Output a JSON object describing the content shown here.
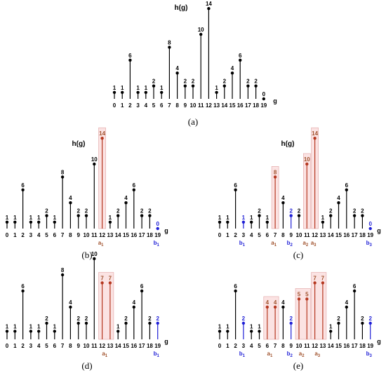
{
  "chart_data": [
    {
      "type": "bar",
      "subtype": "stem",
      "caption": "(a)",
      "ylabel": "h(g)",
      "xlabel": "g",
      "categories": [
        "0",
        "1",
        "2",
        "3",
        "4",
        "5",
        "6",
        "7",
        "8",
        "9",
        "10",
        "11",
        "12",
        "13",
        "14",
        "15",
        "16",
        "17",
        "18",
        "19"
      ],
      "values": [
        1,
        1,
        6,
        1,
        1,
        2,
        1,
        8,
        4,
        2,
        2,
        10,
        14,
        1,
        2,
        4,
        6,
        2,
        2,
        0
      ],
      "highlights": []
    },
    {
      "type": "bar",
      "subtype": "stem",
      "caption": "(b)",
      "ylabel": "h(g)",
      "xlabel": "g",
      "categories": [
        "0",
        "1",
        "2",
        "3",
        "4",
        "5",
        "6",
        "7",
        "8",
        "9",
        "10",
        "11",
        "12",
        "13",
        "14",
        "15",
        "16",
        "17",
        "18",
        "19"
      ],
      "values": [
        1,
        1,
        6,
        1,
        1,
        2,
        1,
        8,
        4,
        2,
        2,
        10,
        14,
        1,
        2,
        4,
        6,
        2,
        2,
        0
      ],
      "highlights": [
        {
          "index": 12,
          "kind": "a",
          "label": "a",
          "sub": "1"
        },
        {
          "index": 19,
          "kind": "b",
          "label": "b",
          "sub": "1"
        }
      ]
    },
    {
      "type": "bar",
      "subtype": "stem",
      "caption": "(c)",
      "ylabel": "h(g)",
      "xlabel": "g",
      "categories": [
        "0",
        "1",
        "2",
        "3",
        "4",
        "5",
        "6",
        "7",
        "8",
        "9",
        "10",
        "11",
        "12",
        "13",
        "14",
        "15",
        "16",
        "17",
        "18",
        "19"
      ],
      "values": [
        1,
        1,
        6,
        1,
        1,
        2,
        1,
        8,
        4,
        2,
        2,
        10,
        14,
        1,
        2,
        4,
        6,
        2,
        2,
        0
      ],
      "highlights": [
        {
          "index": 3,
          "kind": "b",
          "label": "b",
          "sub": "1"
        },
        {
          "index": 7,
          "kind": "a",
          "label": "a",
          "sub": "1"
        },
        {
          "index": 9,
          "kind": "b",
          "label": "b",
          "sub": "2"
        },
        {
          "index": 11,
          "kind": "a",
          "label": "a",
          "sub": "2"
        },
        {
          "index": 12,
          "kind": "a",
          "label": "a",
          "sub": "3"
        },
        {
          "index": 19,
          "kind": "b",
          "label": "b",
          "sub": "3"
        }
      ]
    },
    {
      "type": "bar",
      "subtype": "stem",
      "caption": "(d)",
      "ylabel": "",
      "xlabel": "g",
      "categories": [
        "0",
        "1",
        "2",
        "3",
        "4",
        "5",
        "6",
        "7",
        "8",
        "9",
        "10",
        "11",
        "12",
        "13",
        "14",
        "15",
        "16",
        "17",
        "18",
        "19"
      ],
      "values": [
        1,
        1,
        6,
        1,
        1,
        2,
        1,
        8,
        4,
        2,
        2,
        10,
        7,
        7,
        1,
        2,
        4,
        6,
        2,
        2
      ],
      "highlights": [
        {
          "index": 12,
          "kind": "a",
          "label": "a",
          "sub": "1",
          "group_end": 13
        },
        {
          "index": 19,
          "kind": "b",
          "label": "b",
          "sub": "1"
        }
      ]
    },
    {
      "type": "bar",
      "subtype": "stem",
      "caption": "(e)",
      "ylabel": "",
      "xlabel": "g",
      "categories": [
        "0",
        "1",
        "2",
        "3",
        "4",
        "5",
        "6",
        "7",
        "8",
        "9",
        "10",
        "11",
        "12",
        "13",
        "14",
        "15",
        "16",
        "17",
        "18",
        "19"
      ],
      "values": [
        1,
        1,
        6,
        2,
        1,
        1,
        4,
        4,
        4,
        2,
        5,
        5,
        7,
        7,
        1,
        2,
        4,
        6,
        2,
        2
      ],
      "highlights": [
        {
          "index": 3,
          "kind": "b",
          "label": "b",
          "sub": "1"
        },
        {
          "index": 6,
          "kind": "a",
          "label": "a",
          "sub": "1",
          "group_end": 7
        },
        {
          "index": 9,
          "kind": "b",
          "label": "b",
          "sub": "2"
        },
        {
          "index": 10,
          "kind": "a",
          "label": "a",
          "sub": "2",
          "group_end": 11
        },
        {
          "index": 12,
          "kind": "a",
          "label": "a",
          "sub": "3",
          "group_end": 13
        },
        {
          "index": 19,
          "kind": "b",
          "label": "b",
          "sub": "3"
        }
      ]
    }
  ],
  "colors": {
    "stem": "#000000",
    "a_stem": "#b5371f",
    "a_text": "#a0522d",
    "a_box_fill": "#fbe3e3",
    "a_box_stroke": "#e2a2a2",
    "b_stem": "#1f1fd6",
    "b_text": "#1f1fd6"
  }
}
